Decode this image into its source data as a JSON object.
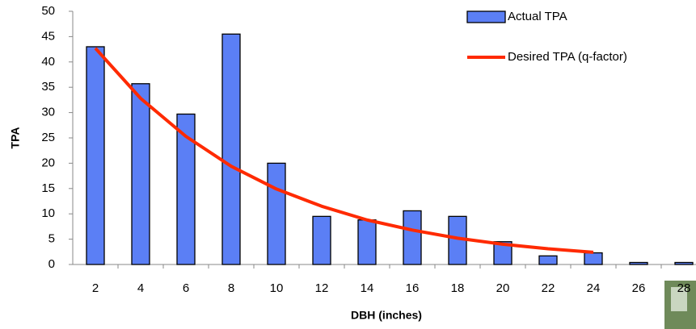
{
  "chart_data": {
    "type": "bar",
    "x_label": "DBH (inches)",
    "y_label": "TPA",
    "categories": [
      "2",
      "4",
      "6",
      "8",
      "10",
      "12",
      "14",
      "16",
      "18",
      "20",
      "22",
      "24",
      "26",
      "28"
    ],
    "series": [
      {
        "name": "Actual TPA",
        "type": "bar",
        "color": "#5b7ff5",
        "values": [
          43,
          35.7,
          29.7,
          45.5,
          20,
          9.5,
          8.8,
          10.6,
          9.5,
          4.5,
          1.7,
          2.3,
          0.4,
          0.4
        ]
      },
      {
        "name": "Desired TPA (q-factor)",
        "type": "line",
        "color": "#ff2a00",
        "values": [
          42.7,
          32.8,
          25.3,
          19.4,
          14.9,
          11.5,
          8.8,
          6.8,
          5.2,
          4.0,
          3.1,
          2.4,
          null,
          null
        ]
      }
    ],
    "ylim": [
      0,
      50
    ],
    "yticks": [
      0,
      5,
      10,
      15,
      20,
      25,
      30,
      35,
      40,
      45,
      50
    ],
    "legend": "top-right"
  }
}
